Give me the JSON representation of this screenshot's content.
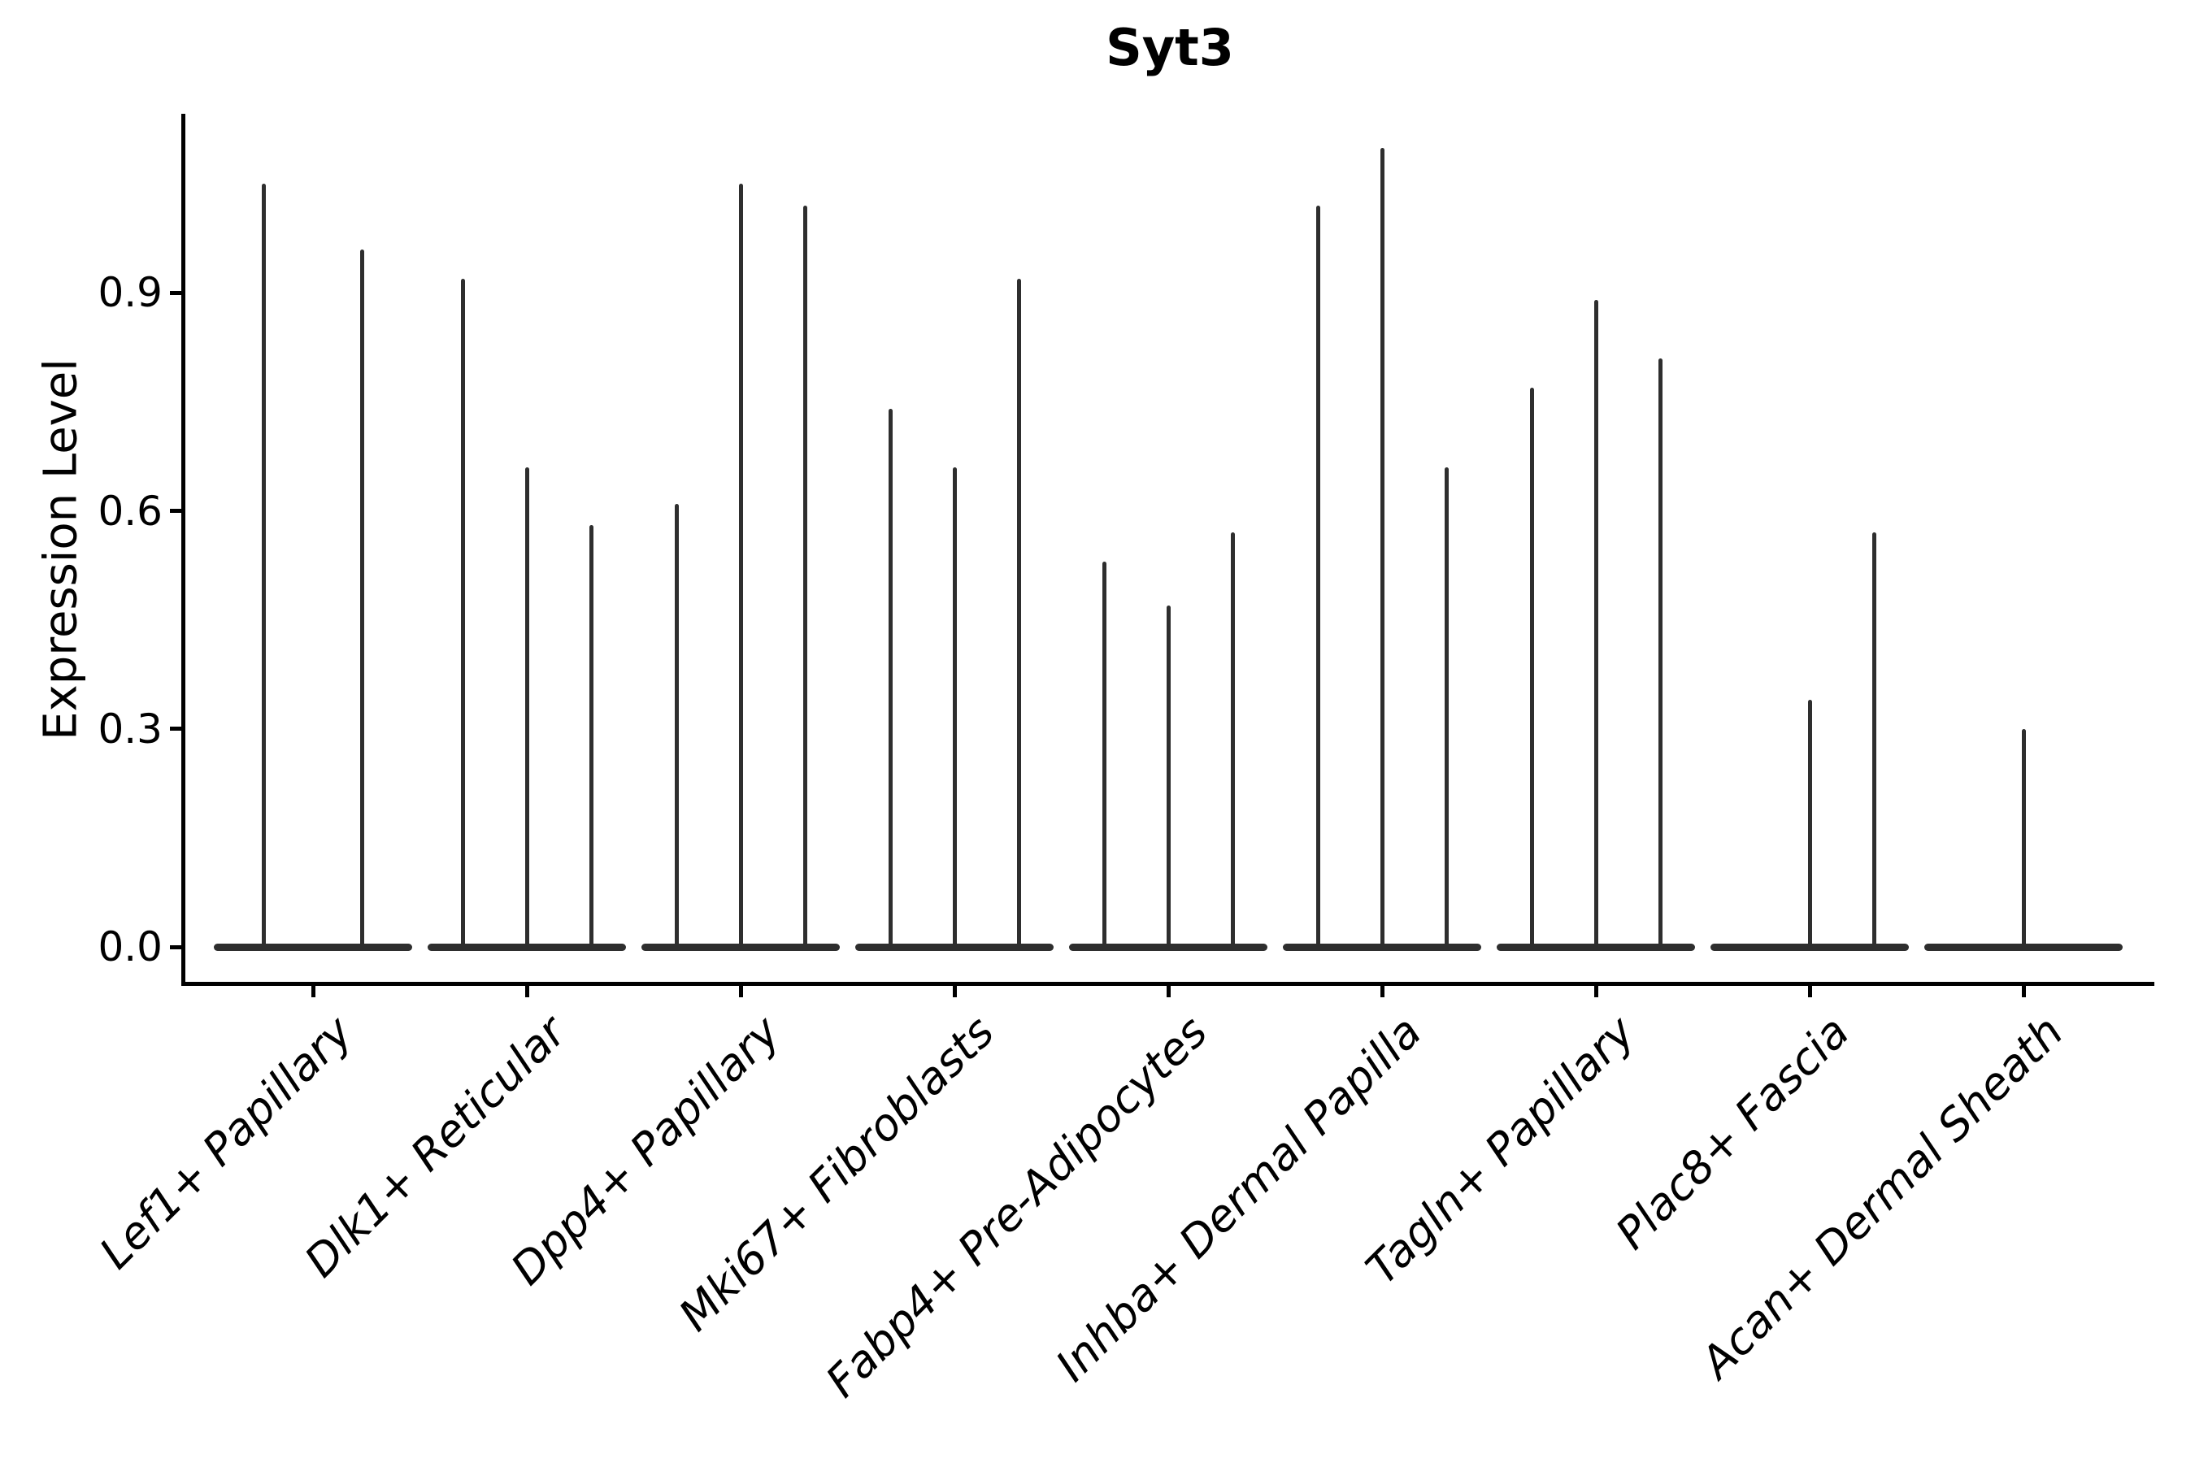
{
  "title": "Syt3",
  "y_axis": {
    "label": "Expression Level",
    "tick_labels": [
      "0.0",
      "0.3",
      "0.6",
      "0.9"
    ],
    "tick_values": [
      0.0,
      0.3,
      0.6,
      0.9
    ]
  },
  "colors": {
    "violin": "#2e2e2e",
    "axis": "#000000",
    "text": "#000000",
    "background": "#ffffff"
  },
  "chart_data": {
    "type": "violin",
    "title": "Syt3",
    "ylabel": "Expression Level",
    "ylim": [
      -0.05,
      1.14
    ],
    "yticks": [
      0.0,
      0.3,
      0.6,
      0.9
    ],
    "grid": false,
    "legend": "none",
    "description": "Violin plot of Syt3 expression; each category holds dodged needle-thin violins whose mass sits at 0 with a single spike to the max value. dx = horizontal offset in px from category center (canvas 2700px wide); max = spike top in expression units; max 0 = flat violin (baseline only).",
    "categories": [
      "Lef1+ Papillary",
      "Dlk1+ Reticular",
      "Dpp4+ Papillary",
      "Mki67+ Fibroblasts",
      "Fabp4+ Pre-Adipocytes",
      "Inhba+ Dermal Papilla",
      "Tagln+ Papillary",
      "Plac8+ Fascia",
      "Acan+ Dermal Sheath"
    ],
    "violins": [
      {
        "category": "Lef1+ Papillary",
        "spikes": [
          {
            "dx": -60.5,
            "max": 1.05
          },
          {
            "dx": 60.5,
            "max": 0.96
          }
        ]
      },
      {
        "category": "Dlk1+ Reticular",
        "spikes": [
          {
            "dx": -79,
            "max": 0.92
          },
          {
            "dx": 0,
            "max": 0.66
          },
          {
            "dx": 79,
            "max": 0.58
          }
        ]
      },
      {
        "category": "Dpp4+ Papillary",
        "spikes": [
          {
            "dx": -79,
            "max": 0.61
          },
          {
            "dx": 0,
            "max": 1.05
          },
          {
            "dx": 79,
            "max": 1.02
          }
        ]
      },
      {
        "category": "Mki67+ Fibroblasts",
        "spikes": [
          {
            "dx": -79,
            "max": 0.74
          },
          {
            "dx": 0,
            "max": 0.66
          },
          {
            "dx": 79,
            "max": 0.92
          }
        ]
      },
      {
        "category": "Fabp4+ Pre-Adipocytes",
        "spikes": [
          {
            "dx": -79,
            "max": 0.53
          },
          {
            "dx": 0,
            "max": 0.47
          },
          {
            "dx": 79,
            "max": 0.57
          }
        ]
      },
      {
        "category": "Inhba+ Dermal Papilla",
        "spikes": [
          {
            "dx": -79,
            "max": 1.02
          },
          {
            "dx": 0,
            "max": 1.1
          },
          {
            "dx": 79,
            "max": 0.66
          }
        ]
      },
      {
        "category": "Tagln+ Papillary",
        "spikes": [
          {
            "dx": -79,
            "max": 0.77
          },
          {
            "dx": 0,
            "max": 0.89
          },
          {
            "dx": 79,
            "max": 0.81
          }
        ]
      },
      {
        "category": "Plac8+ Fascia",
        "spikes": [
          {
            "dx": -79,
            "max": 0
          },
          {
            "dx": 0,
            "max": 0.34
          },
          {
            "dx": 79,
            "max": 0.57
          }
        ]
      },
      {
        "category": "Acan+ Dermal Sheath",
        "spikes": [
          {
            "dx": -79,
            "max": 0
          },
          {
            "dx": 0,
            "max": 0.3
          },
          {
            "dx": 79,
            "max": 0
          }
        ]
      }
    ]
  }
}
